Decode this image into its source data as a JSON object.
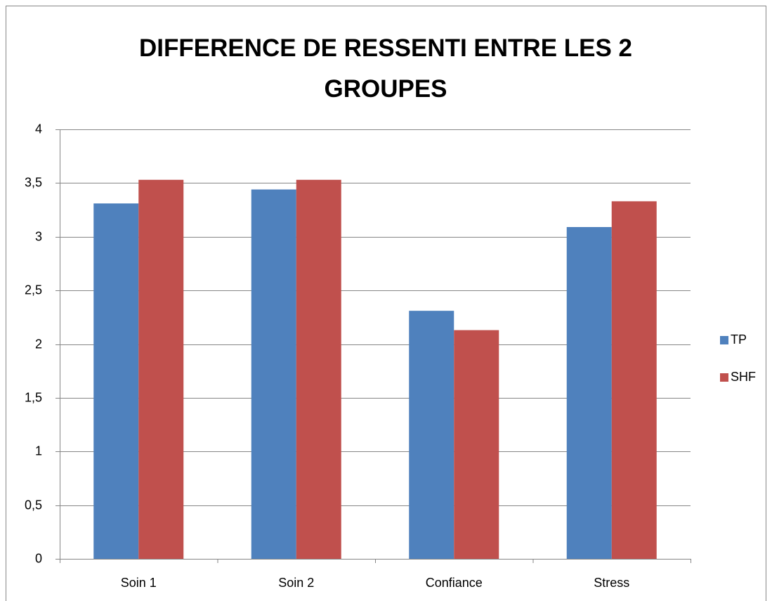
{
  "chart_data": {
    "type": "bar",
    "title": "DIFFERENCE DE RESSENTI ENTRE LES 2 GROUPES",
    "categories": [
      "Soin 1",
      "Soin 2",
      "Confiance",
      "Stress"
    ],
    "series": [
      {
        "name": "TP",
        "color": "#4f81bd",
        "values": [
          3.31,
          3.44,
          2.31,
          3.09
        ]
      },
      {
        "name": "SHF",
        "color": "#c0504d",
        "values": [
          3.53,
          3.53,
          2.13,
          3.33
        ]
      }
    ],
    "ylim": [
      0,
      4
    ],
    "yticks": [
      0,
      {
        "value": 0.5,
        "label": "0,5"
      },
      1,
      {
        "value": 1.5,
        "label": "1,5"
      },
      2,
      {
        "value": 2.5,
        "label": "2,5"
      },
      3,
      {
        "value": 3.5,
        "label": "3,5"
      },
      4
    ],
    "grid": true,
    "legend": "right"
  }
}
